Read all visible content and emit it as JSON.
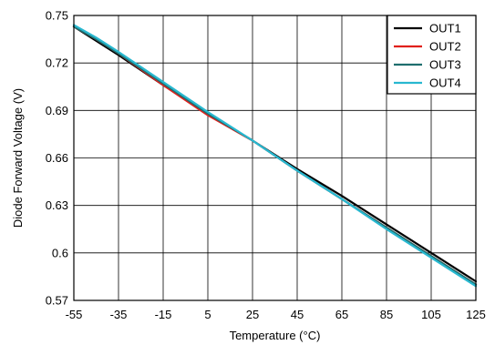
{
  "chart_data": {
    "type": "line",
    "title": "",
    "xlabel": "Temperature (°C)",
    "ylabel": "Diode Forward Voltage (V)",
    "xlim": [
      -55,
      125
    ],
    "ylim": [
      0.57,
      0.75
    ],
    "xticks": [
      -55,
      -35,
      -15,
      5,
      25,
      45,
      65,
      85,
      105,
      125
    ],
    "yticks": [
      0.57,
      0.6,
      0.63,
      0.66,
      0.69,
      0.72,
      0.75
    ],
    "xtick_labels": [
      "-55",
      "-35",
      "-15",
      "5",
      "25",
      "45",
      "65",
      "85",
      "105",
      "125"
    ],
    "ytick_labels": [
      "0.57",
      "0.6",
      "0.63",
      "0.66",
      "0.69",
      "0.72",
      "0.75"
    ],
    "grid": true,
    "legend_position": "top-right",
    "series": [
      {
        "name": "OUT1",
        "color": "#000000",
        "x": [
          -55,
          -45,
          -35,
          -15,
          5,
          25,
          45,
          65,
          85,
          105,
          125
        ],
        "y": [
          0.743,
          0.734,
          0.725,
          0.706,
          0.688,
          0.671,
          0.653,
          0.636,
          0.618,
          0.6,
          0.582
        ]
      },
      {
        "name": "OUT2",
        "color": "#e0201c",
        "x": [
          -55,
          -45,
          -35,
          -15,
          5,
          25,
          45,
          65,
          85,
          105,
          125
        ],
        "y": [
          0.743,
          0.735,
          0.726,
          0.706,
          0.687,
          0.671,
          0.652,
          0.634,
          0.616,
          0.598,
          0.58
        ]
      },
      {
        "name": "OUT3",
        "color": "#1e6e6e",
        "x": [
          -55,
          -45,
          -35,
          -15,
          5,
          25,
          45,
          65,
          85,
          105,
          125
        ],
        "y": [
          0.743,
          0.735,
          0.726,
          0.707,
          0.688,
          0.671,
          0.652,
          0.634,
          0.616,
          0.598,
          0.58
        ]
      },
      {
        "name": "OUT4",
        "color": "#28b8d0",
        "x": [
          -55,
          -45,
          -35,
          -15,
          5,
          25,
          45,
          65,
          85,
          105,
          125
        ],
        "y": [
          0.744,
          0.736,
          0.727,
          0.708,
          0.689,
          0.671,
          0.652,
          0.634,
          0.615,
          0.597,
          0.579
        ]
      }
    ]
  }
}
